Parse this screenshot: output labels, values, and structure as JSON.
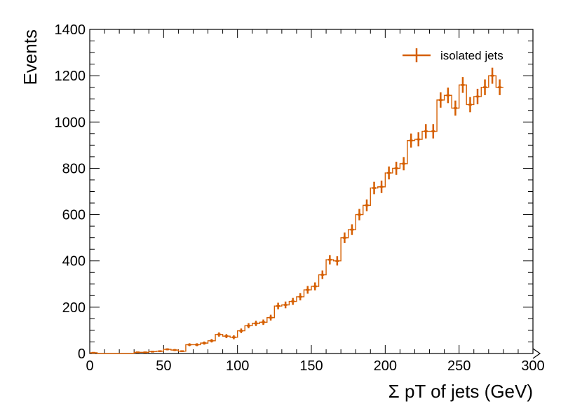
{
  "chart_data": {
    "type": "step-histogram",
    "xlabel": "Σ pT of jets (GeV)",
    "ylabel": "Events",
    "xlim": [
      0,
      300
    ],
    "ylim": [
      0,
      1400
    ],
    "x_ticks": [
      0,
      50,
      100,
      150,
      200,
      250,
      300
    ],
    "y_ticks": [
      0,
      200,
      400,
      600,
      800,
      1000,
      1200,
      1400
    ],
    "bin_width": 5,
    "legend": {
      "placement": "top-right",
      "entries": [
        "isolated jets"
      ]
    },
    "series": [
      {
        "name": "isolated jets",
        "color": "#d55e00",
        "bin_edges_start": 0,
        "values": [
          3,
          0,
          0,
          0,
          0,
          0,
          5,
          5,
          8,
          10,
          18,
          15,
          10,
          38,
          38,
          45,
          55,
          82,
          75,
          70,
          98,
          120,
          130,
          135,
          155,
          205,
          210,
          225,
          245,
          275,
          290,
          340,
          405,
          400,
          500,
          535,
          600,
          640,
          715,
          720,
          780,
          800,
          820,
          920,
          925,
          960,
          960,
          1095,
          1115,
          1060,
          1160,
          1075,
          1110,
          1150,
          1200,
          1150
        ]
      }
    ]
  }
}
